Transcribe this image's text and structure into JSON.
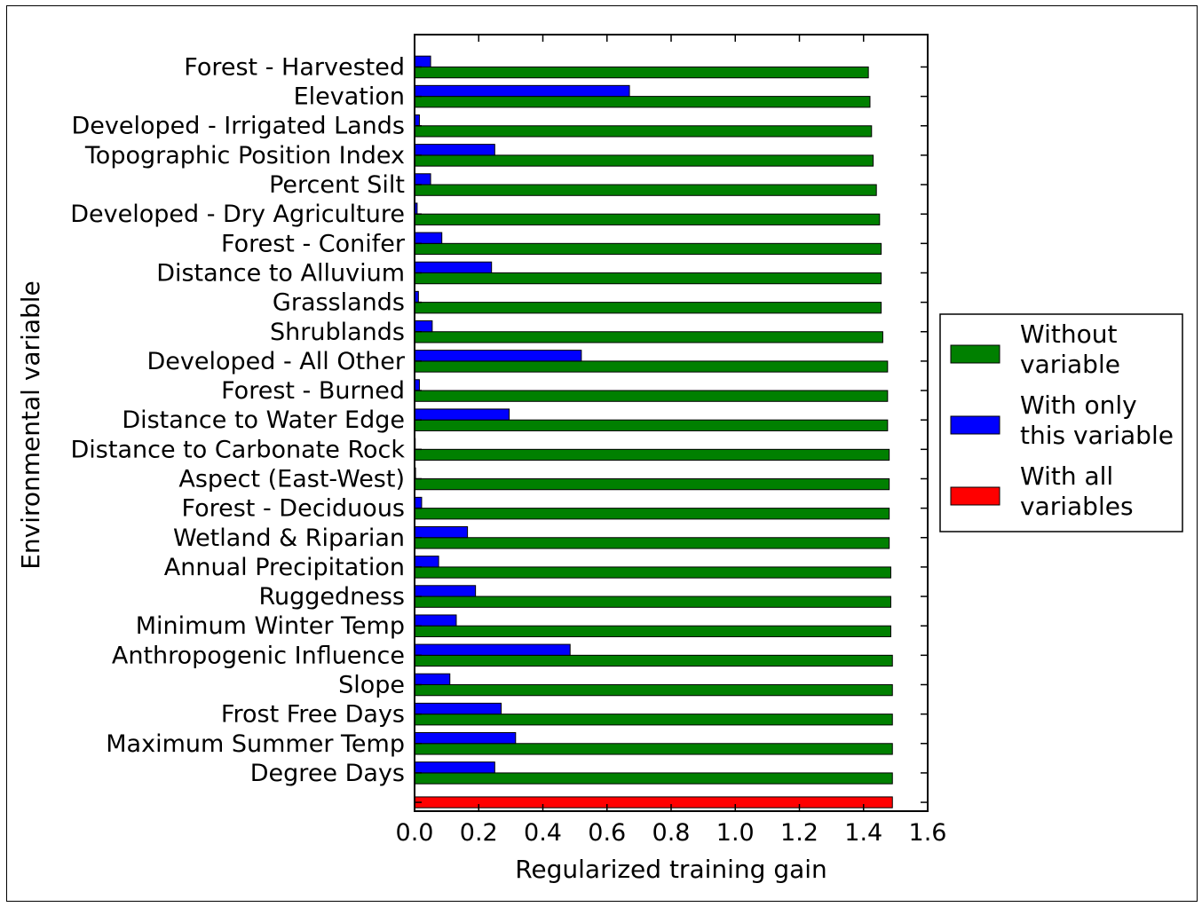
{
  "chart_data": {
    "type": "bar",
    "orientation": "horizontal",
    "xlabel": "Regularized training gain",
    "ylabel": "Environmental variable",
    "xlim": [
      0.0,
      1.6
    ],
    "xticks": [
      "0.0",
      "0.2",
      "0.4",
      "0.6",
      "0.8",
      "1.0",
      "1.2",
      "1.4",
      "1.6"
    ],
    "legend_position": "right",
    "categories": [
      "Forest - Harvested",
      "Elevation",
      "Developed - Irrigated Lands",
      "Topographic Position Index",
      "Percent Silt",
      "Developed - Dry Agriculture",
      "Forest - Conifer",
      "Distance to Alluvium",
      "Grasslands",
      "Shrublands",
      "Developed - All Other",
      "Forest - Burned",
      "Distance to Water Edge",
      "Distance to Carbonate Rock",
      "Aspect (East-West)",
      "Forest - Deciduous",
      "Wetland & Riparian",
      "Annual Precipitation",
      "Ruggedness",
      "Minimum Winter Temp",
      "Anthropogenic Influence",
      "Slope",
      "Frost Free Days",
      "Maximum Summer Temp",
      "Degree Days"
    ],
    "series": [
      {
        "name": "Without variable",
        "color": "#008000",
        "values": [
          1.415,
          1.42,
          1.425,
          1.43,
          1.44,
          1.45,
          1.455,
          1.455,
          1.455,
          1.46,
          1.475,
          1.475,
          1.475,
          1.48,
          1.48,
          1.48,
          1.48,
          1.485,
          1.485,
          1.485,
          1.49,
          1.49,
          1.49,
          1.49,
          1.49
        ]
      },
      {
        "name": "With only this variable",
        "color": "#0000ff",
        "values": [
          0.05,
          0.67,
          0.015,
          0.25,
          0.05,
          0.008,
          0.085,
          0.24,
          0.012,
          0.055,
          0.52,
          0.015,
          0.295,
          0.002,
          0.003,
          0.022,
          0.165,
          0.075,
          0.19,
          0.13,
          0.485,
          0.11,
          0.27,
          0.315,
          0.25
        ]
      },
      {
        "name": "With all variables",
        "color": "#ff0000",
        "value": 1.49
      }
    ],
    "legend": [
      {
        "lines": [
          "Without",
          "variable"
        ],
        "color": "#008000"
      },
      {
        "lines": [
          "With only",
          "this variable"
        ],
        "color": "#0000ff"
      },
      {
        "lines": [
          "With all",
          "variables"
        ],
        "color": "#ff0000"
      }
    ]
  }
}
